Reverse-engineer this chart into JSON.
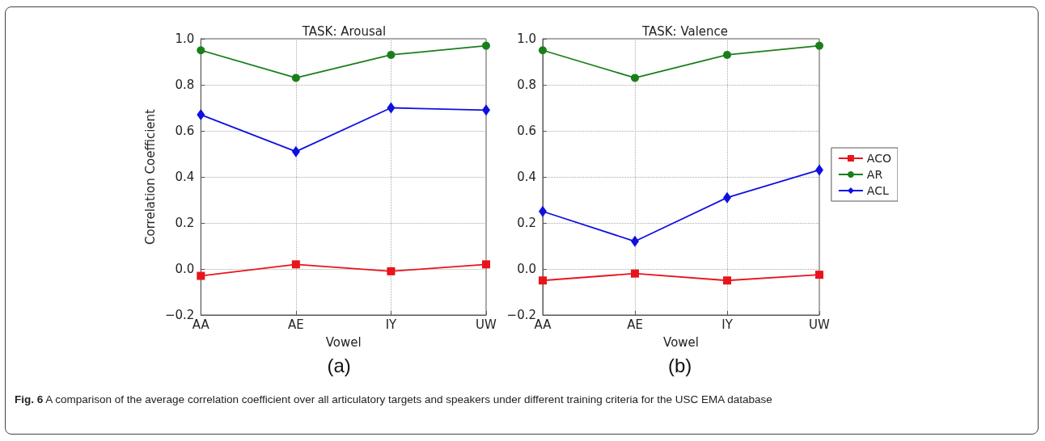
{
  "chart_data": [
    {
      "type": "line",
      "title": "TASK: Arousal",
      "xlabel": "Vowel",
      "ylabel": "Correlation Coefficient",
      "categories": [
        "AA",
        "AE",
        "IY",
        "UW"
      ],
      "ylim": [
        -0.2,
        1.0
      ],
      "yticks": [
        {
          "value": -0.2,
          "label": "−0.2"
        },
        {
          "value": 0,
          "label": "0.0"
        },
        {
          "value": 0.2,
          "label": "0.2"
        },
        {
          "value": 0.4,
          "label": "0.4"
        },
        {
          "value": 0.6,
          "label": "0.6"
        },
        {
          "value": 0.8,
          "label": "0.8"
        },
        {
          "value": 1.0,
          "label": "1.0"
        }
      ],
      "grid": true,
      "legend": false,
      "line_style": "solid",
      "series": [
        {
          "color": "#e8141c",
          "marker": "square",
          "values": [
            -0.03,
            0.02,
            -0.01,
            0.02
          ]
        },
        {
          "color": "#1a7f1a",
          "marker": "circle",
          "values": [
            0.95,
            0.83,
            0.93,
            0.97
          ]
        },
        {
          "color": "#1010e0",
          "marker": "diamond",
          "values": [
            0.67,
            0.51,
            0.7,
            0.69
          ]
        }
      ],
      "annotations": [
        "(a)"
      ]
    },
    {
      "type": "line",
      "title": "TASK: Valence",
      "xlabel": "Vowel",
      "categories": [
        "AA",
        "AE",
        "IY",
        "UW"
      ],
      "ylim": [
        -0.2,
        1.0
      ],
      "yticks": [
        {
          "value": -0.2,
          "label": "−0.2"
        },
        {
          "value": 0,
          "label": "0.0"
        },
        {
          "value": 0.2,
          "label": "0.2"
        },
        {
          "value": 0.4,
          "label": "0.4"
        },
        {
          "value": 0.6,
          "label": "0.6"
        },
        {
          "value": 0.8,
          "label": "0.8"
        },
        {
          "value": 1.0,
          "label": "1.0"
        }
      ],
      "grid": true,
      "legend": "right",
      "line_style": "solid",
      "series": [
        {
          "name": "ACO",
          "color": "#e8141c",
          "marker": "square",
          "values": [
            -0.05,
            -0.02,
            -0.05,
            -0.025
          ]
        },
        {
          "name": "AR",
          "color": "#1a7f1a",
          "marker": "circle",
          "values": [
            0.95,
            0.83,
            0.93,
            0.97
          ]
        },
        {
          "name": "ACL",
          "color": "#1010e0",
          "marker": "diamond",
          "values": [
            0.25,
            0.12,
            0.31,
            0.43
          ]
        }
      ],
      "annotations": [
        "(b)",
        "Fig. 6 A comparison of the average correlation coefficient over all articulatory targets and speakers under different training criteria for the USC EMA database"
      ]
    }
  ]
}
